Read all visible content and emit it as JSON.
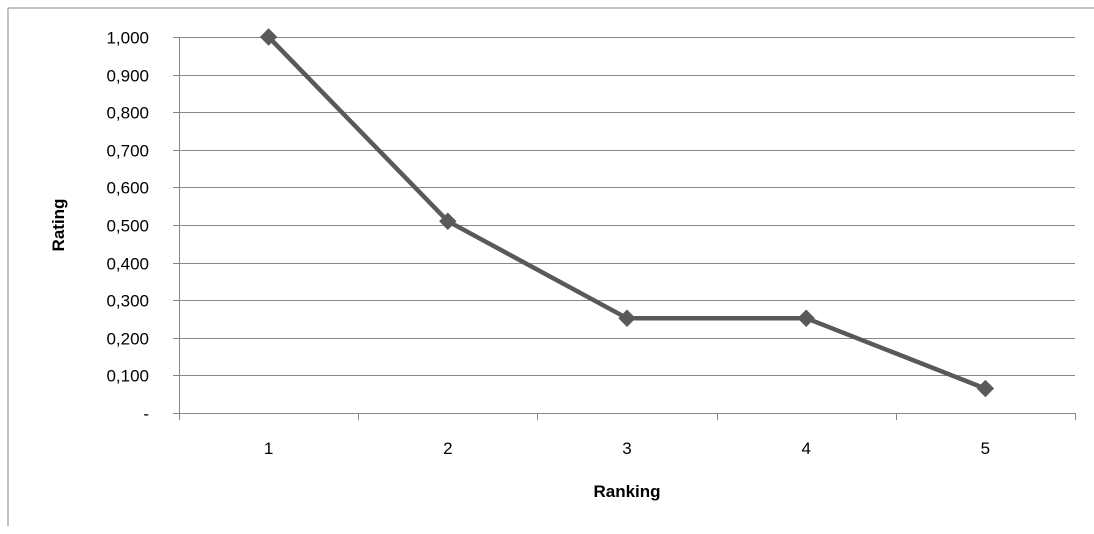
{
  "chart_data": {
    "type": "line",
    "title": "",
    "xlabel": "Ranking",
    "ylabel": "Rating",
    "categories": [
      "1",
      "2",
      "3",
      "4",
      "5"
    ],
    "series": [
      {
        "values": [
          1.0,
          0.51,
          0.252,
          0.252,
          0.065
        ],
        "color": "#595959",
        "marker": "diamond"
      }
    ],
    "ylim": [
      0,
      1.0
    ],
    "y_ticks": [
      {
        "value": 0,
        "label": "-"
      },
      {
        "value": 0.1,
        "label": "0,100"
      },
      {
        "value": 0.2,
        "label": "0,200"
      },
      {
        "value": 0.3,
        "label": "0,300"
      },
      {
        "value": 0.4,
        "label": "0,400"
      },
      {
        "value": 0.5,
        "label": "0,500"
      },
      {
        "value": 0.6,
        "label": "0,600"
      },
      {
        "value": 0.7,
        "label": "0,700"
      },
      {
        "value": 0.8,
        "label": "0,800"
      },
      {
        "value": 0.9,
        "label": "0,900"
      },
      {
        "value": 1.0,
        "label": "1,000"
      }
    ],
    "grid": true,
    "legend": "none",
    "colors": {
      "gridline": "#878787",
      "axis": "#878787",
      "frame": "#878787"
    }
  }
}
